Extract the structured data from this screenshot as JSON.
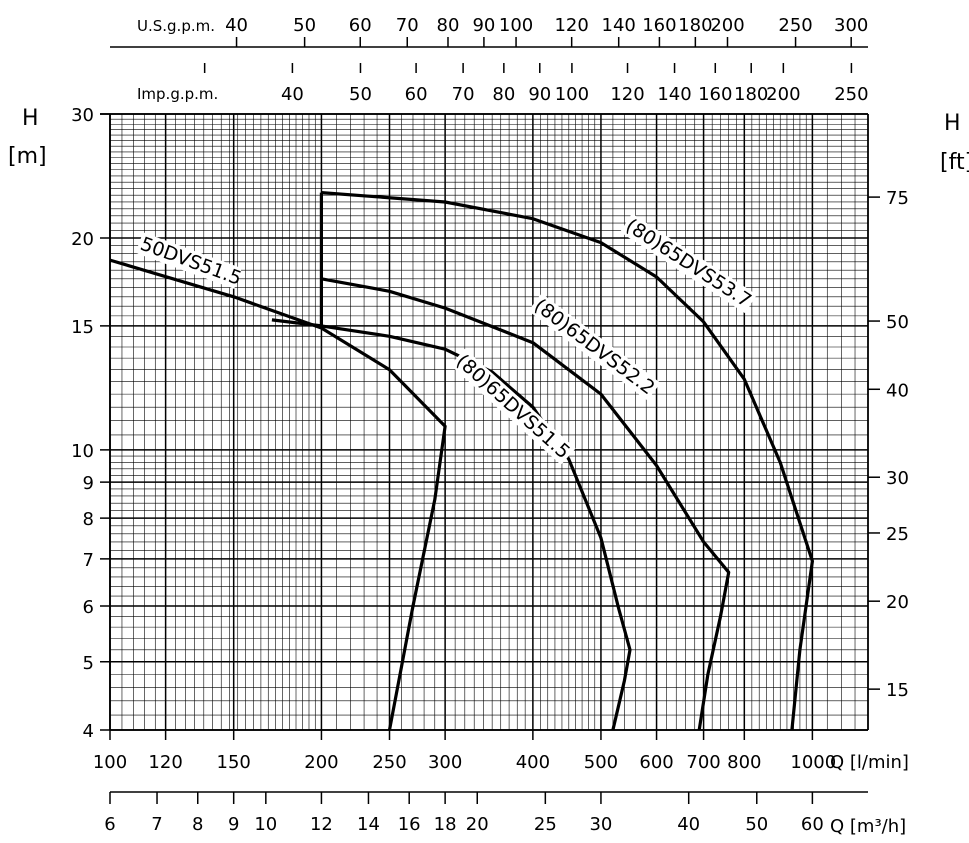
{
  "chart_data": {
    "type": "line",
    "x_scale": "log",
    "y_scale": "log",
    "xlabel": "Q [l/min]",
    "ylabel_left": "H",
    "ylabel_left_unit": "[m]",
    "ylabel_right": "H",
    "ylabel_right_unit": "[ft]",
    "xlim": [
      100,
      1200
    ],
    "ylim": [
      4,
      30
    ],
    "grid": true,
    "x_ticks": [
      {
        "value": 100,
        "label": "100"
      },
      {
        "value": 120,
        "label": "120"
      },
      {
        "value": 150,
        "label": "150"
      },
      {
        "value": 200,
        "label": "200"
      },
      {
        "value": 250,
        "label": "250"
      },
      {
        "value": 300,
        "label": "300"
      },
      {
        "value": 400,
        "label": "400"
      },
      {
        "value": 500,
        "label": "500"
      },
      {
        "value": 600,
        "label": "600"
      },
      {
        "value": 700,
        "label": "700"
      },
      {
        "value": 800,
        "label": "800"
      },
      {
        "value": 1000,
        "label": "1000"
      }
    ],
    "y_ticks": [
      {
        "value": 4,
        "label": "4"
      },
      {
        "value": 5,
        "label": "5"
      },
      {
        "value": 6,
        "label": "6"
      },
      {
        "value": 7,
        "label": "7"
      },
      {
        "value": 8,
        "label": "8"
      },
      {
        "value": 9,
        "label": "9"
      },
      {
        "value": 10,
        "label": "10"
      },
      {
        "value": 15,
        "label": "15"
      },
      {
        "value": 20,
        "label": "20"
      },
      {
        "value": 30,
        "label": "30"
      }
    ],
    "ft_axis": {
      "label": "H",
      "unit": "[ft]",
      "ticks": [
        {
          "value": 15,
          "label": "15"
        },
        {
          "value": 20,
          "label": "20"
        },
        {
          "value": 25,
          "label": "25"
        },
        {
          "value": 30,
          "label": "30"
        },
        {
          "value": 40,
          "label": "40"
        },
        {
          "value": 50,
          "label": "50"
        },
        {
          "value": 75,
          "label": "75"
        }
      ]
    },
    "usgpm_axis": {
      "label": "U.S.g.p.m.",
      "ticks": [
        {
          "value": 40,
          "label": "40"
        },
        {
          "value": 50,
          "label": "50"
        },
        {
          "value": 60,
          "label": "60"
        },
        {
          "value": 70,
          "label": "70"
        },
        {
          "value": 80,
          "label": "80"
        },
        {
          "value": 90,
          "label": "90"
        },
        {
          "value": 100,
          "label": "100"
        },
        {
          "value": 120,
          "label": "120"
        },
        {
          "value": 140,
          "label": "140"
        },
        {
          "value": 160,
          "label": "160"
        },
        {
          "value": 180,
          "label": "180"
        },
        {
          "value": 200,
          "label": "200"
        },
        {
          "value": 250,
          "label": "250"
        },
        {
          "value": 300,
          "label": "300"
        }
      ]
    },
    "impgpm_axis": {
      "label": "Imp.g.p.m.",
      "ticks": [
        {
          "value": 30,
          "label": ""
        },
        {
          "value": 40,
          "label": "40"
        },
        {
          "value": 50,
          "label": "50"
        },
        {
          "value": 60,
          "label": "60"
        },
        {
          "value": 70,
          "label": "70"
        },
        {
          "value": 80,
          "label": "80"
        },
        {
          "value": 90,
          "label": "90"
        },
        {
          "value": 100,
          "label": "100"
        },
        {
          "value": 120,
          "label": "120"
        },
        {
          "value": 140,
          "label": "140"
        },
        {
          "value": 160,
          "label": "160"
        },
        {
          "value": 180,
          "label": "180"
        },
        {
          "value": 200,
          "label": "200"
        },
        {
          "value": 250,
          "label": "250"
        }
      ]
    },
    "m3h_axis": {
      "label": "Q [m³/h]",
      "ticks": [
        {
          "value": 6,
          "label": "6"
        },
        {
          "value": 7,
          "label": "7"
        },
        {
          "value": 8,
          "label": "8"
        },
        {
          "value": 9,
          "label": "9"
        },
        {
          "value": 10,
          "label": "10"
        },
        {
          "value": 12,
          "label": "12"
        },
        {
          "value": 14,
          "label": "14"
        },
        {
          "value": 16,
          "label": "16"
        },
        {
          "value": 18,
          "label": "18"
        },
        {
          "value": 20,
          "label": "20"
        },
        {
          "value": 25,
          "label": "25"
        },
        {
          "value": 30,
          "label": "30"
        },
        {
          "value": 40,
          "label": "40"
        },
        {
          "value": 50,
          "label": "50"
        },
        {
          "value": 60,
          "label": "60"
        }
      ]
    },
    "series": [
      {
        "name": "50DVS51.5",
        "points": [
          [
            100,
            18.6
          ],
          [
            150,
            16.5
          ],
          [
            200,
            14.9
          ],
          [
            250,
            13
          ],
          [
            300,
            10.8
          ],
          [
            290,
            8.5
          ],
          [
            270,
            6
          ],
          [
            250,
            4
          ]
        ]
      },
      {
        "name": "(80)65DVS51.5",
        "points": [
          [
            170,
            15.3
          ],
          [
            200,
            15
          ],
          [
            250,
            14.5
          ],
          [
            300,
            13.9
          ],
          [
            350,
            12.9
          ],
          [
            400,
            11.5
          ],
          [
            450,
            9.7
          ],
          [
            500,
            7.5
          ],
          [
            530,
            5.95
          ],
          [
            550,
            5.2
          ],
          [
            540,
            4.7
          ],
          [
            520,
            4
          ]
        ]
      },
      {
        "name": "(80)65DVS52.2",
        "points": [
          [
            200,
            17.5
          ],
          [
            250,
            16.8
          ],
          [
            300,
            15.9
          ],
          [
            400,
            14.2
          ],
          [
            500,
            12
          ],
          [
            600,
            9.5
          ],
          [
            700,
            7.4
          ],
          [
            760,
            6.7
          ],
          [
            740,
            5.8
          ],
          [
            710,
            4.8
          ],
          [
            690,
            4
          ]
        ]
      },
      {
        "name": "(80)65DVS53.7",
        "points": [
          [
            200,
            23.2
          ],
          [
            300,
            22.5
          ],
          [
            400,
            21.3
          ],
          [
            500,
            19.7
          ],
          [
            600,
            17.6
          ],
          [
            700,
            15.2
          ],
          [
            800,
            12.6
          ],
          [
            900,
            9.6
          ],
          [
            1000,
            6.95
          ],
          [
            960,
            5.2
          ],
          [
            935,
            4
          ]
        ]
      }
    ],
    "boundary": {
      "points": [
        [
          200,
          23.2
        ],
        [
          200,
          14.9
        ]
      ]
    },
    "curve_labels": [
      {
        "text": "50DVS51.5",
        "x": 110,
        "y": 19.3,
        "angle": 20
      },
      {
        "text": "(80)65DVS51.5",
        "x": 310,
        "y": 13.3,
        "angle": 42
      },
      {
        "text": "(80)65DVS52.2",
        "x": 400,
        "y": 15.9,
        "angle": 37
      },
      {
        "text": "(80)65DVS53.7",
        "x": 540,
        "y": 20.6,
        "angle": 33
      }
    ]
  }
}
